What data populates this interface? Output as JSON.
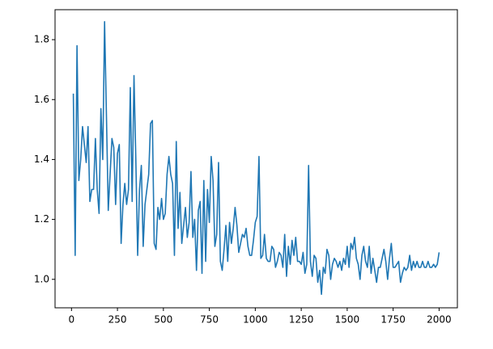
{
  "chart_data": {
    "type": "line",
    "x": [
      10,
      20,
      30,
      40,
      50,
      60,
      70,
      80,
      90,
      100,
      110,
      120,
      130,
      140,
      150,
      160,
      170,
      180,
      190,
      200,
      210,
      220,
      230,
      240,
      250,
      260,
      270,
      280,
      290,
      300,
      310,
      320,
      330,
      340,
      350,
      360,
      370,
      380,
      390,
      400,
      410,
      420,
      430,
      440,
      450,
      460,
      470,
      480,
      490,
      500,
      510,
      520,
      530,
      540,
      550,
      560,
      570,
      580,
      590,
      600,
      610,
      620,
      630,
      640,
      650,
      660,
      670,
      680,
      690,
      700,
      710,
      720,
      730,
      740,
      750,
      760,
      770,
      780,
      790,
      800,
      810,
      820,
      830,
      840,
      850,
      860,
      870,
      880,
      890,
      900,
      910,
      920,
      930,
      940,
      950,
      960,
      970,
      980,
      990,
      1000,
      1010,
      1020,
      1030,
      1040,
      1050,
      1060,
      1070,
      1080,
      1090,
      1100,
      1110,
      1120,
      1130,
      1140,
      1150,
      1160,
      1170,
      1180,
      1190,
      1200,
      1210,
      1220,
      1230,
      1240,
      1250,
      1260,
      1270,
      1280,
      1290,
      1300,
      1310,
      1320,
      1330,
      1340,
      1350,
      1360,
      1370,
      1380,
      1390,
      1400,
      1410,
      1420,
      1430,
      1440,
      1450,
      1460,
      1470,
      1480,
      1490,
      1500,
      1510,
      1520,
      1530,
      1540,
      1550,
      1560,
      1570,
      1580,
      1590,
      1600,
      1610,
      1620,
      1630,
      1640,
      1650,
      1660,
      1670,
      1680,
      1690,
      1700,
      1710,
      1720,
      1730,
      1740,
      1750,
      1760,
      1770,
      1780,
      1790,
      1800,
      1810,
      1820,
      1830,
      1840,
      1850,
      1860,
      1870,
      1880,
      1890,
      1900,
      1910,
      1920,
      1930,
      1940,
      1950,
      1960,
      1970,
      1980,
      1990,
      2000
    ],
    "series": [
      {
        "color": "#1f77b4",
        "values": [
          1.62,
          1.08,
          1.78,
          1.33,
          1.4,
          1.51,
          1.45,
          1.39,
          1.51,
          1.26,
          1.3,
          1.3,
          1.47,
          1.3,
          1.22,
          1.57,
          1.4,
          1.86,
          1.55,
          1.23,
          1.35,
          1.47,
          1.44,
          1.25,
          1.42,
          1.45,
          1.12,
          1.25,
          1.32,
          1.25,
          1.3,
          1.64,
          1.26,
          1.68,
          1.4,
          1.08,
          1.3,
          1.38,
          1.11,
          1.25,
          1.3,
          1.35,
          1.52,
          1.53,
          1.12,
          1.1,
          1.24,
          1.2,
          1.27,
          1.2,
          1.22,
          1.35,
          1.41,
          1.35,
          1.32,
          1.08,
          1.46,
          1.17,
          1.29,
          1.12,
          1.18,
          1.24,
          1.14,
          1.19,
          1.36,
          1.14,
          1.2,
          1.03,
          1.23,
          1.26,
          1.02,
          1.33,
          1.06,
          1.3,
          1.19,
          1.41,
          1.33,
          1.11,
          1.15,
          1.39,
          1.06,
          1.03,
          1.1,
          1.18,
          1.06,
          1.19,
          1.12,
          1.17,
          1.24,
          1.18,
          1.09,
          1.12,
          1.15,
          1.14,
          1.17,
          1.11,
          1.08,
          1.08,
          1.13,
          1.19,
          1.21,
          1.41,
          1.07,
          1.08,
          1.15,
          1.07,
          1.06,
          1.06,
          1.11,
          1.1,
          1.04,
          1.06,
          1.09,
          1.08,
          1.04,
          1.15,
          1.01,
          1.11,
          1.05,
          1.13,
          1.08,
          1.14,
          1.06,
          1.06,
          1.05,
          1.09,
          1.02,
          1.05,
          1.38,
          1.06,
          1.01,
          1.08,
          1.07,
          0.99,
          1.03,
          0.95,
          1.04,
          1.02,
          1.1,
          1.08,
          1.0,
          1.05,
          1.07,
          1.06,
          1.04,
          1.06,
          1.03,
          1.07,
          1.05,
          1.11,
          1.04,
          1.12,
          1.1,
          1.14,
          1.07,
          1.05,
          1.0,
          1.08,
          1.11,
          1.06,
          1.04,
          1.11,
          1.02,
          1.07,
          1.03,
          0.99,
          1.04,
          1.04,
          1.07,
          1.1,
          1.06,
          1.0,
          1.07,
          1.12,
          1.04,
          1.04,
          1.05,
          1.06,
          0.99,
          1.02,
          1.04,
          1.03,
          1.04,
          1.08,
          1.03,
          1.06,
          1.04,
          1.06,
          1.04,
          1.04,
          1.06,
          1.04,
          1.04,
          1.06,
          1.04,
          1.04,
          1.05,
          1.04,
          1.05,
          1.09
        ]
      }
    ],
    "xlim": [
      -89.5,
      2099.5
    ],
    "ylim": [
      0.905,
      1.9
    ],
    "xticks": [
      0,
      250,
      500,
      750,
      1000,
      1250,
      1500,
      1750,
      2000
    ],
    "yticks": [
      {
        "value": 1,
        "label": "1.0"
      },
      {
        "value": 1.2,
        "label": "1.2"
      },
      {
        "value": 1.4,
        "label": "1.4"
      },
      {
        "value": 1.6,
        "label": "1.6"
      },
      {
        "value": 1.8,
        "label": "1.8"
      }
    ]
  }
}
